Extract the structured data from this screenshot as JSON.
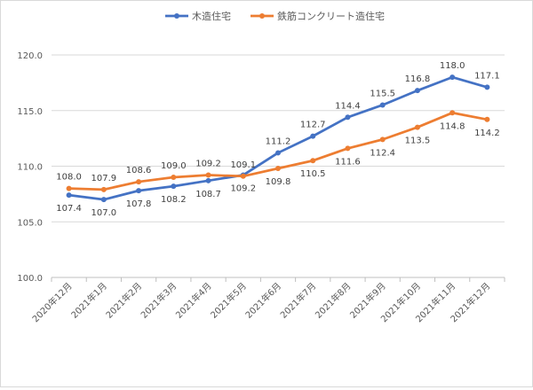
{
  "chart_data": {
    "type": "line",
    "title": "",
    "xlabel": "",
    "ylabel": "",
    "ylim": [
      100,
      120
    ],
    "yticks": [
      "100.0",
      "105.0",
      "110.0",
      "115.0",
      "120.0"
    ],
    "grid": true,
    "legend_position": "top",
    "categories": [
      "2020年12月",
      "2021年1月",
      "2021年2月",
      "2021年3月",
      "2021年4月",
      "2021年5月",
      "2021年6月",
      "2021年7月",
      "2021年8月",
      "2021年9月",
      "2021年10月",
      "2021年11月",
      "2021年12月"
    ],
    "series": [
      {
        "name": "木造住宅",
        "color": "#4472c4",
        "label_pos": [
          "below",
          "below",
          "below",
          "below",
          "below",
          "below",
          "above",
          "above",
          "above",
          "above",
          "above",
          "above",
          "above"
        ],
        "values": [
          107.4,
          107.0,
          107.8,
          108.2,
          108.7,
          109.2,
          111.2,
          112.7,
          114.4,
          115.5,
          116.8,
          118.0,
          117.1
        ]
      },
      {
        "name": "鉄筋コンクリート造住宅",
        "color": "#ed7d31",
        "label_pos": [
          "above",
          "above",
          "above",
          "above",
          "above",
          "above",
          "below",
          "below",
          "below",
          "below",
          "below",
          "below",
          "below"
        ],
        "values": [
          108.0,
          107.9,
          108.6,
          109.0,
          109.2,
          109.1,
          109.8,
          110.5,
          111.6,
          112.4,
          113.5,
          114.8,
          114.2
        ]
      }
    ]
  }
}
